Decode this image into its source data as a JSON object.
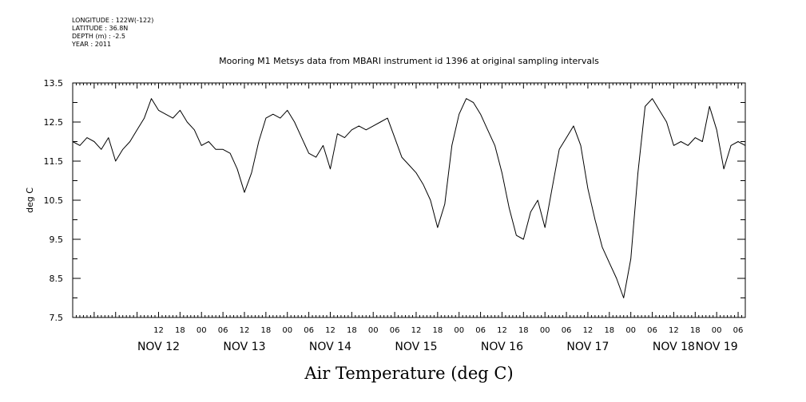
{
  "header": {
    "metadata": [
      "LONGITUDE : 122W(-122)",
      "LATITUDE : 36.8N",
      "DEPTH (m) : -2.5",
      "YEAR : 2011"
    ]
  },
  "chart_data": {
    "type": "line",
    "title": "Mooring M1 Metsys data from MBARI instrument id 1396 at original sampling intervals",
    "xlabel": "Air Temperature (deg C)",
    "ylabel": "deg C",
    "ylim": [
      7.5,
      13.5
    ],
    "y_ticks": [
      "13.5",
      "12.5",
      "11.5",
      "10.5",
      "9.5",
      "8.5",
      "7.5"
    ],
    "xlim": [
      "2011-11-11T12:00",
      "2011-11-19T08:00"
    ],
    "x_hour_ticks": [
      {
        "t": "2011-11-12T12:00",
        "label": "12"
      },
      {
        "t": "2011-11-12T18:00",
        "label": "18"
      },
      {
        "t": "2011-11-13T00:00",
        "label": "00"
      },
      {
        "t": "2011-11-13T06:00",
        "label": "06"
      },
      {
        "t": "2011-11-13T12:00",
        "label": "12"
      },
      {
        "t": "2011-11-13T18:00",
        "label": "18"
      },
      {
        "t": "2011-11-14T00:00",
        "label": "00"
      },
      {
        "t": "2011-11-14T06:00",
        "label": "06"
      },
      {
        "t": "2011-11-14T12:00",
        "label": "12"
      },
      {
        "t": "2011-11-14T18:00",
        "label": "18"
      },
      {
        "t": "2011-11-15T00:00",
        "label": "00"
      },
      {
        "t": "2011-11-15T06:00",
        "label": "06"
      },
      {
        "t": "2011-11-15T12:00",
        "label": "12"
      },
      {
        "t": "2011-11-15T18:00",
        "label": "18"
      },
      {
        "t": "2011-11-16T00:00",
        "label": "00"
      },
      {
        "t": "2011-11-16T06:00",
        "label": "06"
      },
      {
        "t": "2011-11-16T12:00",
        "label": "12"
      },
      {
        "t": "2011-11-16T18:00",
        "label": "18"
      },
      {
        "t": "2011-11-17T00:00",
        "label": "00"
      },
      {
        "t": "2011-11-17T06:00",
        "label": "06"
      },
      {
        "t": "2011-11-17T12:00",
        "label": "12"
      },
      {
        "t": "2011-11-17T18:00",
        "label": "18"
      },
      {
        "t": "2011-11-18T00:00",
        "label": "00"
      },
      {
        "t": "2011-11-18T06:00",
        "label": "06"
      },
      {
        "t": "2011-11-18T12:00",
        "label": "12"
      },
      {
        "t": "2011-11-18T18:00",
        "label": "18"
      },
      {
        "t": "2011-11-19T00:00",
        "label": "00"
      },
      {
        "t": "2011-11-19T06:00",
        "label": "06"
      }
    ],
    "x_day_labels": [
      {
        "t": "2011-11-12T12:00",
        "label": "NOV 12"
      },
      {
        "t": "2011-11-13T12:00",
        "label": "NOV 13"
      },
      {
        "t": "2011-11-14T12:00",
        "label": "NOV 14"
      },
      {
        "t": "2011-11-15T12:00",
        "label": "NOV 15"
      },
      {
        "t": "2011-11-16T12:00",
        "label": "NOV 16"
      },
      {
        "t": "2011-11-17T12:00",
        "label": "NOV 17"
      },
      {
        "t": "2011-11-18T12:00",
        "label": "NOV 18"
      },
      {
        "t": "2011-11-19T00:00",
        "label": "NOV 19"
      }
    ],
    "series": [
      {
        "color": "#000000",
        "x": [
          "2011-11-11T12:00",
          "2011-11-11T14:00",
          "2011-11-11T16:00",
          "2011-11-11T18:00",
          "2011-11-11T20:00",
          "2011-11-11T22:00",
          "2011-11-12T00:00",
          "2011-11-12T02:00",
          "2011-11-12T04:00",
          "2011-11-12T06:00",
          "2011-11-12T08:00",
          "2011-11-12T10:00",
          "2011-11-12T12:00",
          "2011-11-12T14:00",
          "2011-11-12T16:00",
          "2011-11-12T18:00",
          "2011-11-12T20:00",
          "2011-11-12T22:00",
          "2011-11-13T00:00",
          "2011-11-13T02:00",
          "2011-11-13T04:00",
          "2011-11-13T06:00",
          "2011-11-13T08:00",
          "2011-11-13T10:00",
          "2011-11-13T12:00",
          "2011-11-13T14:00",
          "2011-11-13T16:00",
          "2011-11-13T18:00",
          "2011-11-13T20:00",
          "2011-11-13T22:00",
          "2011-11-14T00:00",
          "2011-11-14T02:00",
          "2011-11-14T04:00",
          "2011-11-14T06:00",
          "2011-11-14T08:00",
          "2011-11-14T10:00",
          "2011-11-14T12:00",
          "2011-11-14T14:00",
          "2011-11-14T16:00",
          "2011-11-14T18:00",
          "2011-11-14T20:00",
          "2011-11-14T22:00",
          "2011-11-15T00:00",
          "2011-11-15T02:00",
          "2011-11-15T04:00",
          "2011-11-15T06:00",
          "2011-11-15T08:00",
          "2011-11-15T10:00",
          "2011-11-15T12:00",
          "2011-11-15T14:00",
          "2011-11-15T16:00",
          "2011-11-15T18:00",
          "2011-11-15T20:00",
          "2011-11-15T22:00",
          "2011-11-16T00:00",
          "2011-11-16T02:00",
          "2011-11-16T04:00",
          "2011-11-16T06:00",
          "2011-11-16T08:00",
          "2011-11-16T10:00",
          "2011-11-16T12:00",
          "2011-11-16T14:00",
          "2011-11-16T16:00",
          "2011-11-16T18:00",
          "2011-11-16T20:00",
          "2011-11-16T22:00",
          "2011-11-17T00:00",
          "2011-11-17T02:00",
          "2011-11-17T04:00",
          "2011-11-17T06:00",
          "2011-11-17T08:00",
          "2011-11-17T10:00",
          "2011-11-17T12:00",
          "2011-11-17T14:00",
          "2011-11-17T16:00",
          "2011-11-17T18:00",
          "2011-11-17T20:00",
          "2011-11-17T22:00",
          "2011-11-18T00:00",
          "2011-11-18T02:00",
          "2011-11-18T04:00",
          "2011-11-18T06:00",
          "2011-11-18T08:00",
          "2011-11-18T10:00",
          "2011-11-18T12:00",
          "2011-11-18T14:00",
          "2011-11-18T16:00",
          "2011-11-18T18:00",
          "2011-11-18T20:00",
          "2011-11-18T22:00",
          "2011-11-19T00:00",
          "2011-11-19T02:00",
          "2011-11-19T04:00",
          "2011-11-19T06:00",
          "2011-11-19T08:00"
        ],
        "y": [
          12.0,
          11.9,
          12.1,
          12.0,
          11.8,
          12.1,
          11.5,
          11.8,
          12.0,
          12.3,
          12.6,
          13.1,
          12.8,
          12.7,
          12.6,
          12.8,
          12.5,
          12.3,
          11.9,
          12.0,
          11.8,
          11.8,
          11.7,
          11.3,
          10.7,
          11.2,
          12.0,
          12.6,
          12.7,
          12.6,
          12.8,
          12.5,
          12.1,
          11.7,
          11.6,
          11.9,
          11.3,
          12.2,
          12.1,
          12.3,
          12.4,
          12.3,
          12.4,
          12.5,
          12.6,
          12.1,
          11.6,
          11.4,
          11.2,
          10.9,
          10.5,
          9.8,
          10.4,
          11.9,
          12.7,
          13.1,
          13.0,
          12.7,
          12.3,
          11.9,
          11.2,
          10.3,
          9.6,
          9.5,
          10.2,
          10.5,
          9.8,
          10.8,
          11.8,
          12.1,
          12.4,
          11.9,
          10.8,
          10.0,
          9.3,
          8.9,
          8.5,
          8.0,
          9.0,
          11.2,
          12.9,
          13.1,
          12.8,
          12.5,
          11.9,
          12.0,
          11.9,
          12.1,
          12.0,
          12.9,
          12.3,
          11.3,
          11.9,
          12.0,
          11.9
        ]
      }
    ]
  }
}
